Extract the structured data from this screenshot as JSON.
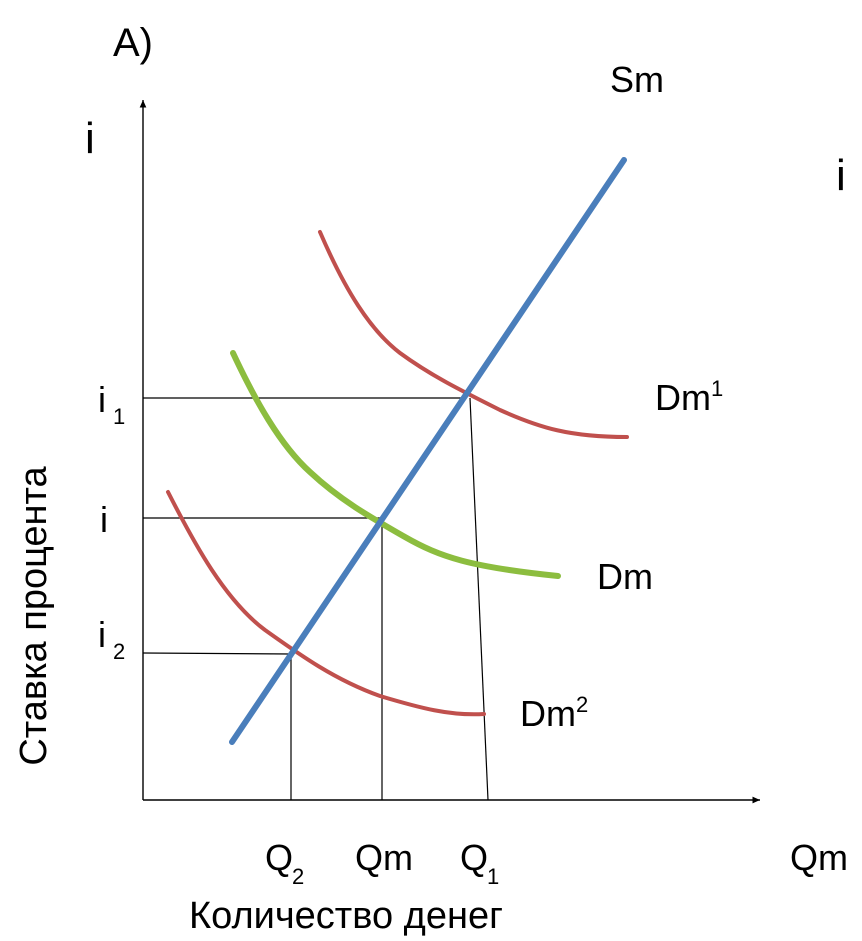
{
  "panel_label": "A)",
  "axis": {
    "y_symbol_left": "i",
    "y_symbol_right": "i",
    "y_title": "Ставка процента",
    "x_title": "Количество денег",
    "x_symbol_right": "Qm"
  },
  "ticks": {
    "y": [
      {
        "base": "i",
        "sub": "1"
      },
      {
        "base": "i",
        "sub": ""
      },
      {
        "base": "i",
        "sub": "2"
      }
    ],
    "x": [
      {
        "base": "Q",
        "sub": "2"
      },
      {
        "base": "Qm",
        "sub": ""
      },
      {
        "base": "Q",
        "sub": "1"
      }
    ]
  },
  "curves": {
    "supply": {
      "label": "Sm",
      "color": "#4a7ebb"
    },
    "demand": {
      "label": "Dm",
      "sup": "",
      "color": "#8cbd3f"
    },
    "demand_high": {
      "label": "Dm",
      "sup": "1",
      "color": "#c0504d"
    },
    "demand_low": {
      "label": "Dm",
      "sup": "2",
      "color": "#c0504d"
    }
  },
  "guide_color": "#000000"
}
